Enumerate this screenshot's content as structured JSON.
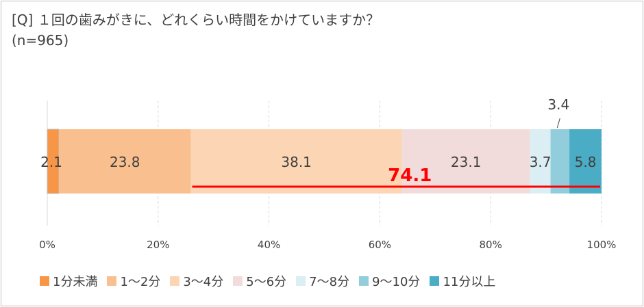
{
  "title": {
    "line1": "[Q] １回の歯みがきに、どれくらい時間をかけていますか？",
    "line2": "(n=965)"
  },
  "chart_data": {
    "type": "bar",
    "orientation": "horizontal-stacked-100",
    "title": "[Q] １回の歯みがきに、どれくらい時間をかけていますか？ (n=965)",
    "xlim": [
      0,
      100
    ],
    "x_ticks": [
      "0%",
      "20%",
      "40%",
      "60%",
      "80%",
      "100%"
    ],
    "grid": true,
    "legend_position": "bottom",
    "series": [
      {
        "name": "1分未満",
        "value": 2.1,
        "label": "2.1",
        "color": "#f79646"
      },
      {
        "name": "1～2分",
        "value": 23.8,
        "label": "23.8",
        "color": "#fabf8f"
      },
      {
        "name": "3～4分",
        "value": 38.1,
        "label": "38.1",
        "color": "#fcd5b4"
      },
      {
        "name": "5～6分",
        "value": 23.1,
        "label": "23.1",
        "color": "#f2dcdb"
      },
      {
        "name": "7～8分",
        "value": 3.7,
        "label": "3.7",
        "color": "#daeef3"
      },
      {
        "name": "9～10分",
        "value": 3.4,
        "label": "3.4",
        "color": "#92cddc"
      },
      {
        "name": "11分以上",
        "value": 5.8,
        "label": "5.8",
        "color": "#4bacc6"
      }
    ],
    "annotation": {
      "text": "74.1",
      "from": 25.9,
      "to": 100,
      "color": "#ff0000"
    }
  }
}
